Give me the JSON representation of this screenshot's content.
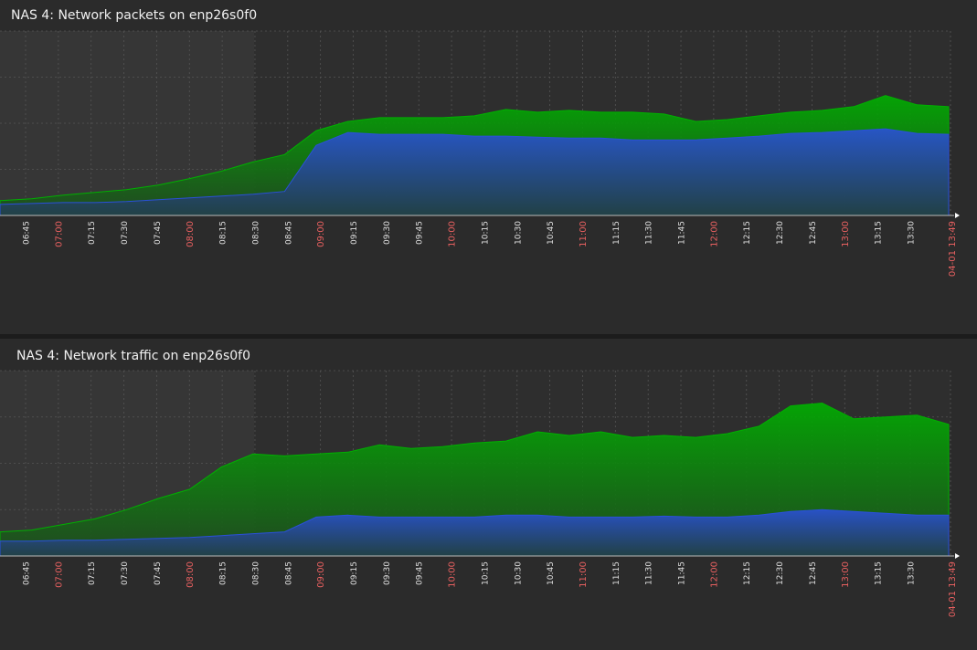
{
  "colors": {
    "background": "#2b2b2b",
    "plot_background": "#2e2e2e",
    "highlight_band": "#363636",
    "grid": "#555555",
    "in_series": "#00b000",
    "out_series": "#2a50d8",
    "major_tick": "#e86060",
    "minor_tick": "#e0e0e0"
  },
  "charts": [
    {
      "title": "NAS 4: Network packets on enp26s0f0",
      "chart_data": {
        "type": "area",
        "series": [
          {
            "values": [
              16,
              18,
              22,
              25,
              28,
              33,
              40,
              48,
              58,
              66,
              92,
              102,
              106,
              106,
              106,
              108,
              115,
              112,
              114,
              112,
              112,
              110,
              102,
              104,
              108,
              112,
              114,
              118,
              130,
              120,
              118
            ]
          },
          {
            "values": [
              12,
              13,
              14,
              14,
              15,
              17,
              19,
              21,
              23,
              26,
              76,
              90,
              88,
              88,
              88,
              86,
              86,
              85,
              84,
              84,
              82,
              82,
              82,
              84,
              86,
              89,
              90,
              92,
              94,
              89,
              88
            ]
          }
        ],
        "x_ticks": [
          "06:45",
          "07:00",
          "07:15",
          "07:30",
          "07:45",
          "08:00",
          "08:15",
          "08:30",
          "08:45",
          "09:00",
          "09:15",
          "09:30",
          "09:45",
          "10:00",
          "10:15",
          "10:30",
          "10:45",
          "11:00",
          "11:15",
          "11:30",
          "11:45",
          "12:00",
          "12:15",
          "12:30",
          "12:45",
          "13:00",
          "13:15",
          "13:30"
        ],
        "major_ticks": [
          "07:00",
          "08:00",
          "09:00",
          "10:00",
          "11:00",
          "12:00",
          "13:00"
        ],
        "end_label": "04-01 13:49",
        "grid": true,
        "ylim": [
          0,
          200
        ]
      }
    },
    {
      "title": "NAS 4: Network traffic on enp26s0f0",
      "chart_data": {
        "type": "area",
        "series": [
          {
            "values": [
              26,
              28,
              34,
              40,
              50,
              62,
              72,
              96,
              110,
              108,
              110,
              112,
              120,
              116,
              118,
              122,
              124,
              134,
              130,
              134,
              128,
              130,
              128,
              132,
              140,
              162,
              165,
              148,
              150,
              152,
              142
            ]
          },
          {
            "values": [
              16,
              16,
              17,
              17,
              18,
              19,
              20,
              22,
              24,
              26,
              42,
              44,
              42,
              42,
              42,
              42,
              44,
              44,
              42,
              42,
              42,
              43,
              42,
              42,
              44,
              48,
              50,
              48,
              46,
              44,
              44
            ]
          }
        ],
        "x_ticks": [
          "06:45",
          "07:00",
          "07:15",
          "07:30",
          "07:45",
          "08:00",
          "08:15",
          "08:30",
          "08:45",
          "09:00",
          "09:15",
          "09:30",
          "09:45",
          "10:00",
          "10:15",
          "10:30",
          "10:45",
          "11:00",
          "11:15",
          "11:30",
          "11:45",
          "12:00",
          "12:15",
          "12:30",
          "12:45",
          "13:00",
          "13:15",
          "13:30"
        ],
        "major_ticks": [
          "07:00",
          "08:00",
          "09:00",
          "10:00",
          "11:00",
          "12:00",
          "13:00"
        ],
        "end_label": "04-01 13:49",
        "grid": true,
        "ylim": [
          0,
          200
        ]
      }
    }
  ]
}
